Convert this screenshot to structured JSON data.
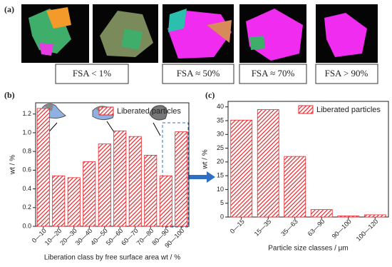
{
  "panel_a": {
    "label": "(a)",
    "captions": [
      "FSA < 1%",
      "FSA ≈ 50%",
      "FSA ≈ 70%",
      "FSA > 90%"
    ]
  },
  "chart_data": [
    {
      "type": "bar",
      "panel_label": "(b)",
      "categories": [
        "0—10",
        "10—20",
        "20—30",
        "30—40",
        "40—50",
        "50—60",
        "60—70",
        "70—80",
        "80—90",
        "90—100"
      ],
      "series": [
        {
          "name": "Liberated particles",
          "color": "#e8262b",
          "values": [
            1.26,
            0.54,
            0.52,
            0.69,
            0.88,
            1.02,
            0.96,
            0.76,
            0.54,
            1.01
          ]
        }
      ],
      "x_label": "Liberation class by free surface area wt / %",
      "y_label": "wt / %",
      "ylim": [
        0,
        1.32
      ],
      "yticks": [
        {
          "value": 0,
          "label": "0.0"
        },
        0.2,
        0.4,
        0.6,
        0.8,
        {
          "value": 1,
          "label": "1.0"
        },
        1.2
      ],
      "legend": "upper right",
      "grid": false
    },
    {
      "type": "bar",
      "panel_label": "(c)",
      "categories": [
        "0—15",
        "15—35",
        "35—63",
        "63—90",
        "90—100",
        "100—120"
      ],
      "series": [
        {
          "name": "Liberated particles",
          "color": "#e8262b",
          "values": [
            35.2,
            39,
            22,
            2.7,
            0.4,
            0.8
          ]
        }
      ],
      "x_label": "Particle size classes / μm",
      "y_label": "wt / %",
      "ylim": [
        0,
        42
      ],
      "yticks": [
        0,
        5,
        10,
        15,
        20,
        25,
        30,
        35,
        40
      ],
      "legend": "upper right",
      "grid": false
    }
  ]
}
